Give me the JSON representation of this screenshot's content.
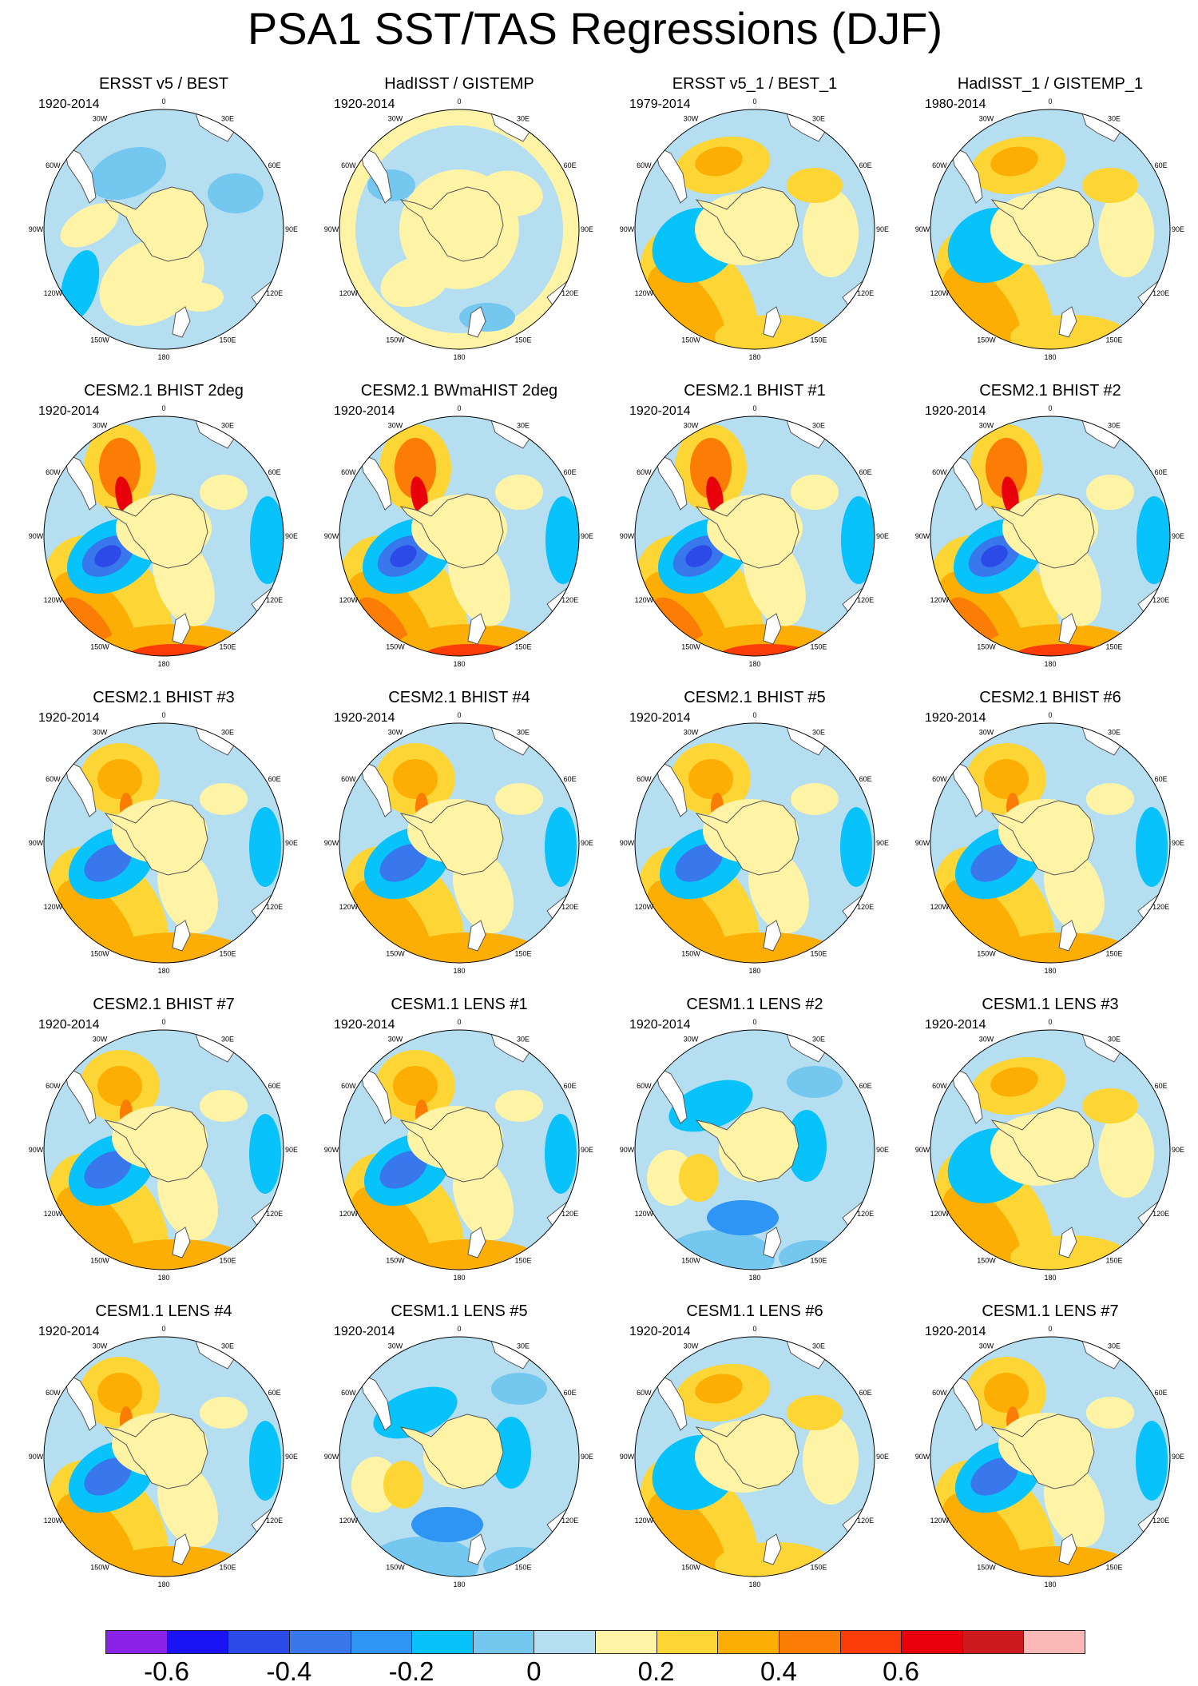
{
  "title": "PSA1 SST/TAS Regressions (DJF)",
  "longitude_labels": [
    "0",
    "30E",
    "60E",
    "90E",
    "120E",
    "150E",
    "180",
    "150W",
    "120W",
    "90W",
    "60W",
    "30W"
  ],
  "panels": [
    {
      "title": "ERSST v5 / BEST",
      "years": "1920-2014",
      "pattern": "obs_weak"
    },
    {
      "title": "HadISST / GISTEMP",
      "years": "1920-2014",
      "pattern": "obs_flat"
    },
    {
      "title": "ERSST v5_1 / BEST_1",
      "years": "1979-2014",
      "pattern": "psa_mod"
    },
    {
      "title": "HadISST_1 / GISTEMP_1",
      "years": "1980-2014",
      "pattern": "psa_mod"
    },
    {
      "title": "CESM2.1 BHIST 2deg",
      "years": "1920-2014",
      "pattern": "psa_strong"
    },
    {
      "title": "CESM2.1 BWmaHIST 2deg",
      "years": "1920-2014",
      "pattern": "psa_strong"
    },
    {
      "title": "CESM2.1 BHIST #1",
      "years": "1920-2014",
      "pattern": "psa_strong"
    },
    {
      "title": "CESM2.1 BHIST #2",
      "years": "1920-2014",
      "pattern": "psa_strong"
    },
    {
      "title": "CESM2.1 BHIST #3",
      "years": "1920-2014",
      "pattern": "psa_std"
    },
    {
      "title": "CESM2.1 BHIST #4",
      "years": "1920-2014",
      "pattern": "psa_std"
    },
    {
      "title": "CESM2.1 BHIST #5",
      "years": "1920-2014",
      "pattern": "psa_std"
    },
    {
      "title": "CESM2.1 BHIST #6",
      "years": "1920-2014",
      "pattern": "psa_std"
    },
    {
      "title": "CESM2.1 BHIST #7",
      "years": "1920-2014",
      "pattern": "psa_std"
    },
    {
      "title": "CESM1.1 LENS #1",
      "years": "1920-2014",
      "pattern": "psa_std"
    },
    {
      "title": "CESM1.1 LENS #2",
      "years": "1920-2014",
      "pattern": "neg"
    },
    {
      "title": "CESM1.1 LENS #3",
      "years": "1920-2014",
      "pattern": "psa_mod"
    },
    {
      "title": "CESM1.1 LENS #4",
      "years": "1920-2014",
      "pattern": "psa_std"
    },
    {
      "title": "CESM1.1 LENS #5",
      "years": "1920-2014",
      "pattern": "neg"
    },
    {
      "title": "CESM1.1 LENS #6",
      "years": "1920-2014",
      "pattern": "psa_mod"
    },
    {
      "title": "CESM1.1 LENS #7",
      "years": "1920-2014",
      "pattern": "psa_std"
    }
  ],
  "colorbar": {
    "colors": [
      "#8a22e8",
      "#1a14f4",
      "#2c4ae8",
      "#3877ec",
      "#2f95f5",
      "#07c2fb",
      "#74c7ef",
      "#b6def1",
      "#fff4a6",
      "#fdd636",
      "#fcae05",
      "#fb7d06",
      "#fb3b08",
      "#e8000b",
      "#cd1a1f",
      "#fcb7b7"
    ],
    "labels": [
      "-0.6",
      "-0.4",
      "-0.2",
      "0",
      "0.2",
      "0.4",
      "0.6"
    ],
    "label_values": [
      -0.6,
      -0.4,
      -0.2,
      0,
      0.2,
      0.4,
      0.6
    ],
    "levels_min": -0.7,
    "levels_step": 0.1
  }
}
